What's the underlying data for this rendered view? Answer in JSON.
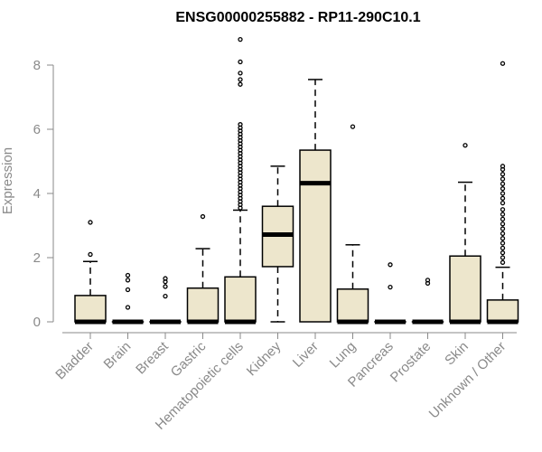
{
  "chart_data": {
    "type": "box",
    "title": "ENSG00000255882 - RP11-290C10.1",
    "xlabel": "",
    "ylabel": "Expression",
    "ylim": [
      0,
      8.8
    ],
    "yticks": [
      0,
      2,
      4,
      6,
      8
    ],
    "colors": {
      "box_fill": "#ede6cc",
      "stroke": "#000000",
      "axis": "#8a8a8a"
    },
    "categories": [
      "Bladder",
      "Brain",
      "Breast",
      "Gastric",
      "Hematopoietic cells",
      "Kidney",
      "Liver",
      "Lung",
      "Pancreas",
      "Prostate",
      "Skin",
      "Unknown / Other"
    ],
    "boxes": [
      {
        "category": "Bladder",
        "q1": 0,
        "median": 0,
        "q3": 0.82,
        "whisker_low": 0,
        "whisker_high": 1.88,
        "outliers": [
          2.1,
          3.1
        ]
      },
      {
        "category": "Brain",
        "q1": 0,
        "median": 0,
        "q3": 0,
        "whisker_low": 0,
        "whisker_high": 0,
        "outliers": [
          0.45,
          1.0,
          1.3,
          1.45
        ]
      },
      {
        "category": "Breast",
        "q1": 0,
        "median": 0,
        "q3": 0,
        "whisker_low": 0,
        "whisker_high": 0,
        "outliers": [
          0.8,
          1.1,
          1.25,
          1.35
        ]
      },
      {
        "category": "Gastric",
        "q1": 0,
        "median": 0,
        "q3": 1.05,
        "whisker_low": 0,
        "whisker_high": 2.28,
        "outliers": [
          3.28
        ]
      },
      {
        "category": "Hematopoietic cells",
        "q1": 0,
        "median": 0,
        "q3": 1.4,
        "whisker_low": 0,
        "whisker_high": 3.48,
        "outliers": [
          3.55,
          3.65,
          3.75,
          3.85,
          3.95,
          4.05,
          4.15,
          4.25,
          4.35,
          4.45,
          4.55,
          4.65,
          4.75,
          4.85,
          4.95,
          5.05,
          5.15,
          5.25,
          5.35,
          5.45,
          5.55,
          5.65,
          5.75,
          5.85,
          5.95,
          6.05,
          6.15,
          7.4,
          7.55,
          7.75,
          8.1,
          8.8
        ]
      },
      {
        "category": "Kidney",
        "q1": 1.72,
        "median": 2.72,
        "q3": 3.6,
        "whisker_low": 0,
        "whisker_high": 4.85,
        "outliers": []
      },
      {
        "category": "Liver",
        "q1": 0,
        "median": 4.32,
        "q3": 5.35,
        "whisker_low": 0,
        "whisker_high": 7.55,
        "outliers": []
      },
      {
        "category": "Lung",
        "q1": 0,
        "median": 0,
        "q3": 1.02,
        "whisker_low": 0,
        "whisker_high": 2.4,
        "outliers": [
          6.08
        ]
      },
      {
        "category": "Pancreas",
        "q1": 0,
        "median": 0,
        "q3": 0,
        "whisker_low": 0,
        "whisker_high": 0,
        "outliers": [
          1.08,
          1.78
        ]
      },
      {
        "category": "Prostate",
        "q1": 0,
        "median": 0,
        "q3": 0,
        "whisker_low": 0,
        "whisker_high": 0,
        "outliers": [
          1.2,
          1.3
        ]
      },
      {
        "category": "Skin",
        "q1": 0,
        "median": 0,
        "q3": 2.05,
        "whisker_low": 0,
        "whisker_high": 4.35,
        "outliers": [
          5.5
        ]
      },
      {
        "category": "Unknown / Other",
        "q1": 0,
        "median": 0,
        "q3": 0.68,
        "whisker_low": 0,
        "whisker_high": 1.7,
        "outliers": [
          1.85,
          2.0,
          2.15,
          2.3,
          2.45,
          2.6,
          2.75,
          2.9,
          3.05,
          3.2,
          3.35,
          3.5,
          3.7,
          3.85,
          4.0,
          4.15,
          4.3,
          4.45,
          4.6,
          4.75,
          4.85,
          8.05
        ]
      }
    ]
  }
}
